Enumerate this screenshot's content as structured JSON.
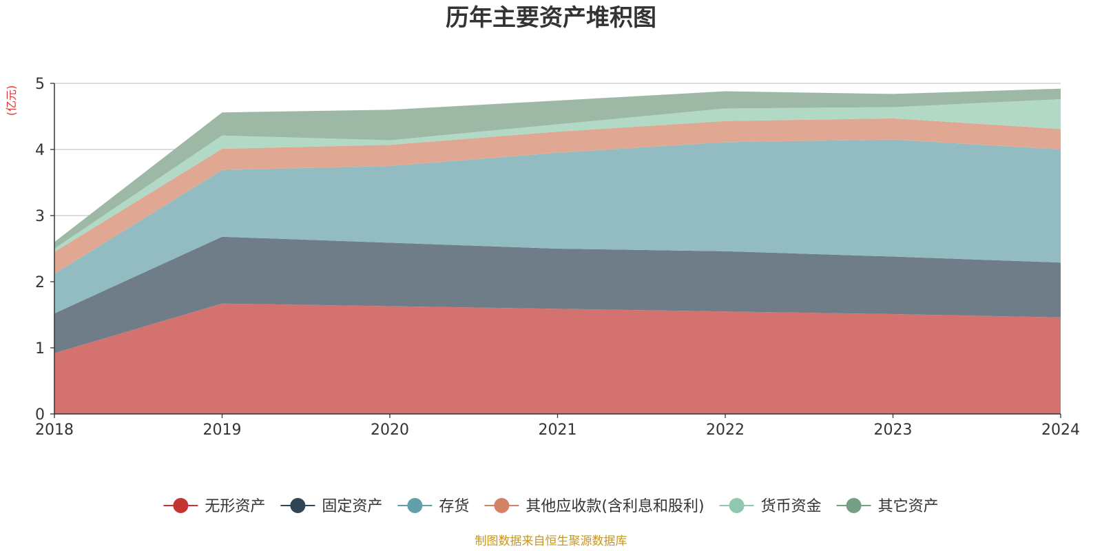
{
  "chart_data": {
    "type": "area",
    "stacked": true,
    "title": "历年主要资产堆积图",
    "ylabel": "(亿元)",
    "xlabel": "",
    "x": [
      "2018",
      "2019",
      "2020",
      "2021",
      "2022",
      "2023",
      "2024"
    ],
    "ylim": [
      0,
      5
    ],
    "yticks": [
      0,
      1,
      2,
      3,
      4,
      5
    ],
    "grid": true,
    "legend_position": "bottom",
    "series": [
      {
        "name": "无形资产",
        "color": "#c23531",
        "fill": "#d47270",
        "values": [
          0.92,
          1.67,
          1.63,
          1.59,
          1.55,
          1.51,
          1.46
        ]
      },
      {
        "name": "固定资产",
        "color": "#2f4554",
        "fill": "#6e7d88",
        "values": [
          0.6,
          1.01,
          0.96,
          0.91,
          0.91,
          0.87,
          0.83
        ]
      },
      {
        "name": "存货",
        "color": "#61a0a8",
        "fill": "#93bcc2",
        "values": [
          0.6,
          1.01,
          1.16,
          1.45,
          1.65,
          1.77,
          1.71
        ]
      },
      {
        "name": "其他应收款(含利息和股利)",
        "color": "#d48265",
        "fill": "#e0a893",
        "values": [
          0.33,
          0.32,
          0.32,
          0.32,
          0.32,
          0.32,
          0.31
        ]
      },
      {
        "name": "货币资金",
        "color": "#91c7ae",
        "fill": "#b2d9c6",
        "values": [
          0.05,
          0.2,
          0.07,
          0.11,
          0.19,
          0.17,
          0.45
        ]
      },
      {
        "name": "其它资产",
        "color": "#749f83",
        "fill": "#9db9a6",
        "values": [
          0.1,
          0.35,
          0.46,
          0.36,
          0.26,
          0.2,
          0.16
        ]
      }
    ],
    "source": "制图数据来自恒生聚源数据库"
  }
}
